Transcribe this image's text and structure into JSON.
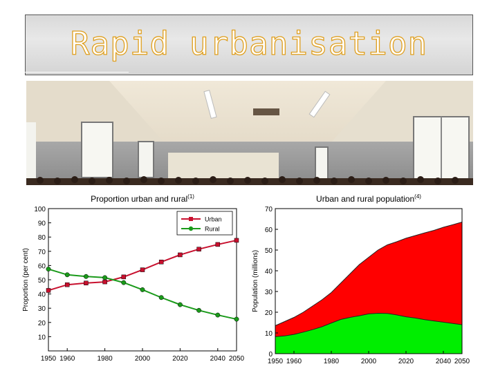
{
  "slide": {
    "title": "Rapid urbanisation"
  },
  "chart_data": [
    {
      "type": "line",
      "title": "Proportion urban and rural",
      "title_superscript": "(1)",
      "xlabel": "",
      "ylabel": "Proportion (per cent)",
      "xlim": [
        1950,
        2050
      ],
      "ylim": [
        0,
        100
      ],
      "xticks": [
        1950,
        1960,
        1980,
        2000,
        2020,
        2040,
        2050
      ],
      "yticks": [
        10,
        20,
        30,
        40,
        50,
        60,
        70,
        80,
        90,
        100
      ],
      "legend": "top-right",
      "grid": false,
      "x": [
        1950,
        1960,
        1970,
        1980,
        1990,
        2000,
        2010,
        2020,
        2030,
        2040,
        2050
      ],
      "series": [
        {
          "name": "Urban",
          "color": "#c8102e",
          "marker": "square",
          "values": [
            42.5,
            46.5,
            47.7,
            48.5,
            52.0,
            57.0,
            62.5,
            67.5,
            71.5,
            74.8,
            77.7
          ]
        },
        {
          "name": "Rural",
          "color": "#1a9a1a",
          "marker": "circle",
          "values": [
            57.5,
            53.5,
            52.3,
            51.5,
            48.0,
            43.0,
            37.5,
            32.5,
            28.5,
            25.2,
            22.3
          ]
        }
      ]
    },
    {
      "type": "area",
      "title": "Urban and rural population",
      "title_superscript": "(4)",
      "xlabel": "",
      "ylabel": "Population (millions)",
      "xlim": [
        1950,
        2050
      ],
      "ylim": [
        0,
        70
      ],
      "xticks": [
        1950,
        1960,
        1980,
        2000,
        2020,
        2040,
        2050
      ],
      "yticks": [
        0,
        10,
        20,
        30,
        40,
        50,
        60,
        70
      ],
      "grid": false,
      "x": [
        1950,
        1955,
        1960,
        1965,
        1970,
        1975,
        1980,
        1985,
        1990,
        1995,
        2000,
        2005,
        2010,
        2015,
        2020,
        2025,
        2030,
        2035,
        2040,
        2045,
        2050
      ],
      "series": [
        {
          "color": "#00ee00",
          "values": [
            8.2,
            8.6,
            9.3,
            10.4,
            11.6,
            13.0,
            14.8,
            16.5,
            17.5,
            18.3,
            19.2,
            19.5,
            19.4,
            18.7,
            17.8,
            17.2,
            16.4,
            15.8,
            15.2,
            14.6,
            14.0
          ]
        },
        {
          "color": "#ff0000",
          "values": [
            13.5,
            15.5,
            17.5,
            20.0,
            23.0,
            26.0,
            29.5,
            34.0,
            38.5,
            43.0,
            46.5,
            50.0,
            52.5,
            54.0,
            55.7,
            57.0,
            58.3,
            59.5,
            61.0,
            62.2,
            63.5
          ]
        }
      ]
    }
  ]
}
